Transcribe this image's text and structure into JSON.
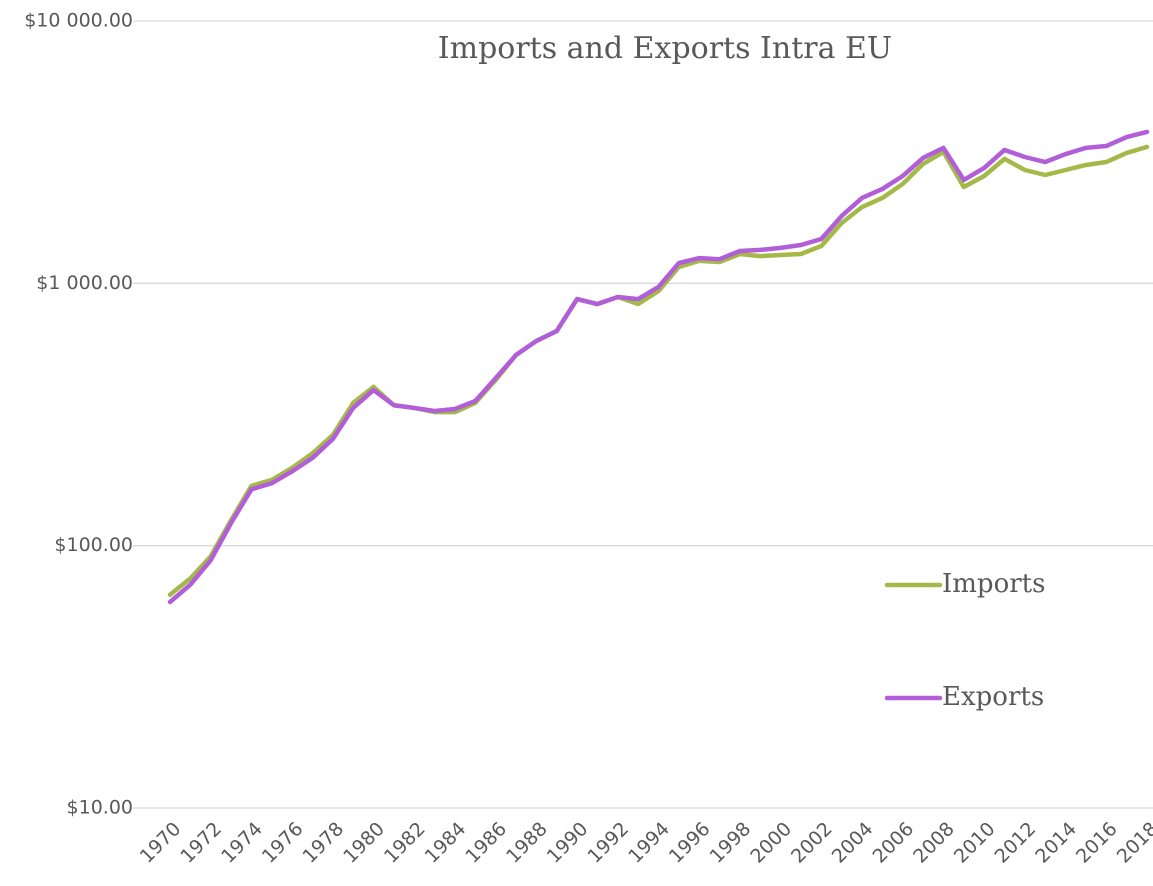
{
  "chart_data": {
    "type": "line",
    "title": "Imports and Exports Intra EU",
    "categories": [
      "1970",
      null,
      "1972",
      null,
      "1974",
      null,
      "1976",
      null,
      "1978",
      null,
      "1980",
      null,
      "1982",
      null,
      "1984",
      null,
      "1986",
      null,
      "1988",
      null,
      "1990",
      null,
      "1992",
      null,
      "1994",
      null,
      "1996",
      null,
      "1998",
      null,
      "2000",
      null,
      "2002",
      null,
      "2004",
      null,
      "2006",
      null,
      "2008",
      null,
      "2010",
      null,
      "2012",
      null,
      "2014",
      null,
      "2016",
      null,
      "2018"
    ],
    "series": [
      {
        "name": "Imports",
        "color": "#a5b94a",
        "values": [
          65,
          75,
          91,
          125,
          169,
          178,
          198,
          225,
          264,
          350,
          403,
          343,
          335,
          323,
          323,
          350,
          428,
          533,
          603,
          658,
          871,
          834,
          887,
          834,
          935,
          1155,
          1218,
          1206,
          1294,
          1270,
          1282,
          1294,
          1388,
          1698,
          1954,
          2115,
          2393,
          2853,
          3170,
          2329,
          2566,
          2981,
          2704,
          2588,
          2704,
          2826,
          2900,
          3141,
          3311
        ]
      },
      {
        "name": "Exports",
        "color": "#b25ed8",
        "values": [
          61,
          71,
          88,
          122,
          164,
          173,
          192,
          216,
          255,
          335,
          392,
          343,
          335,
          326,
          332,
          356,
          435,
          533,
          603,
          658,
          871,
          834,
          887,
          871,
          969,
          1195,
          1248,
          1236,
          1328,
          1341,
          1365,
          1400,
          1476,
          1806,
          2115,
          2290,
          2566,
          3006,
          3283,
          2478,
          2754,
          3224,
          3031,
          2900,
          3110,
          3283,
          3337,
          3610,
          3776
        ]
      }
    ],
    "ylim": [
      10,
      10000
    ],
    "yticks": [
      {
        "value": 10,
        "label": "$10.00"
      },
      {
        "value": 100,
        "label": "$100.00"
      },
      {
        "value": 1000,
        "label": "$1 000.00"
      },
      {
        "value": 10000,
        "label": "$10 000.00"
      }
    ],
    "log_scale": true,
    "grid": true,
    "legend": "right"
  }
}
